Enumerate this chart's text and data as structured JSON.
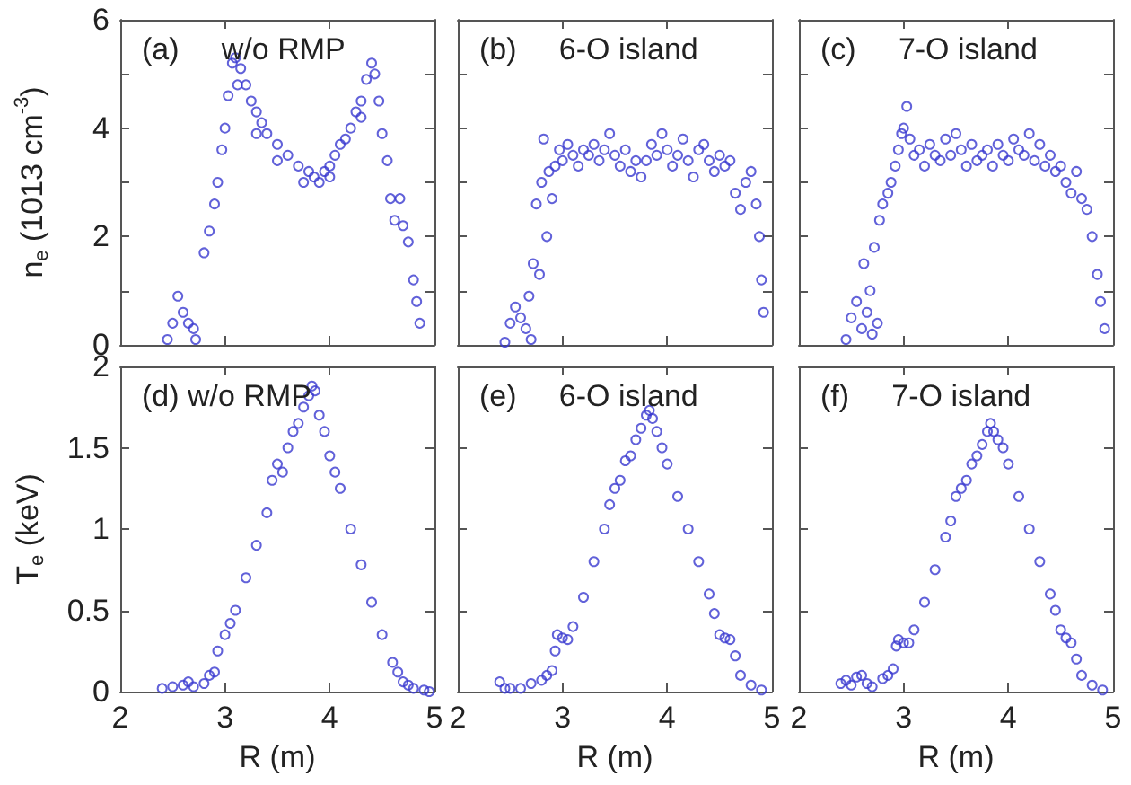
{
  "chart_data": [
    {
      "type": "scatter",
      "title": "(a)     w/o RMP",
      "ylabel": "n$_{e}$ (1013 cm$^{-3}$)",
      "xlim": [
        2,
        5
      ],
      "xticks": [
        {
          "value": 2,
          "label": null
        },
        {
          "value": 3,
          "label": null
        },
        {
          "value": 4,
          "label": null
        },
        {
          "value": 5,
          "label": null
        }
      ],
      "ylim": [
        0,
        6
      ],
      "yticks": [
        0,
        {
          "value": 1,
          "label": null
        },
        2,
        {
          "value": 3,
          "label": null
        },
        4,
        {
          "value": 5,
          "label": null
        },
        6
      ],
      "tick_labels": "y",
      "marker": "circle",
      "series": [
        {
          "color": "#3a3ad0",
          "x": [
            2.45,
            2.5,
            2.55,
            2.6,
            2.65,
            2.7,
            2.72,
            2.8,
            2.85,
            2.9,
            2.93,
            2.97,
            3.0,
            3.03,
            3.07,
            3.1,
            3.15,
            3.2,
            3.25,
            3.3,
            3.35,
            3.4,
            3.5,
            3.6,
            3.7,
            3.8,
            3.85,
            3.9,
            3.95,
            4.0,
            4.05,
            4.1,
            4.15,
            4.2,
            4.25,
            4.3,
            4.35,
            4.4,
            4.43,
            4.47,
            4.5,
            4.55,
            4.58,
            4.62,
            4.67,
            4.7,
            4.75,
            4.8,
            4.83,
            4.86,
            3.12,
            3.3,
            3.5,
            3.75,
            4.0,
            4.3
          ],
          "values": [
            0.1,
            0.4,
            0.9,
            0.6,
            0.4,
            0.3,
            0.1,
            1.7,
            2.1,
            2.6,
            3.0,
            3.6,
            4.0,
            4.6,
            5.2,
            5.3,
            5.1,
            4.8,
            4.5,
            4.3,
            4.1,
            3.9,
            3.7,
            3.5,
            3.3,
            3.2,
            3.1,
            3.0,
            3.2,
            3.3,
            3.5,
            3.7,
            3.8,
            4.0,
            4.3,
            4.5,
            4.9,
            5.2,
            5.0,
            4.5,
            3.9,
            3.4,
            2.7,
            2.3,
            2.7,
            2.2,
            1.9,
            1.2,
            0.8,
            0.4,
            4.8,
            3.9,
            3.4,
            3.0,
            3.1,
            4.2
          ]
        }
      ]
    },
    {
      "type": "scatter",
      "title": "(b)     6-O island",
      "xlim": [
        2,
        5
      ],
      "xticks": [
        {
          "value": 2,
          "label": null
        },
        {
          "value": 3,
          "label": null
        },
        {
          "value": 4,
          "label": null
        },
        {
          "value": 5,
          "label": null
        }
      ],
      "ylim": [
        0,
        6
      ],
      "yticks": [
        {
          "value": 0,
          "label": null
        },
        {
          "value": 1,
          "label": null
        },
        {
          "value": 2,
          "label": null
        },
        {
          "value": 3,
          "label": null
        },
        {
          "value": 4,
          "label": null
        },
        {
          "value": 5,
          "label": null
        },
        {
          "value": 6,
          "label": null
        }
      ],
      "tick_labels": false,
      "marker": "circle",
      "series": [
        {
          "color": "#3a3ad0",
          "x": [
            2.45,
            2.5,
            2.55,
            2.6,
            2.65,
            2.7,
            2.68,
            2.72,
            2.75,
            2.78,
            2.8,
            2.82,
            2.85,
            2.87,
            2.9,
            2.93,
            2.97,
            3.0,
            3.05,
            3.1,
            3.15,
            3.2,
            3.25,
            3.3,
            3.35,
            3.4,
            3.45,
            3.5,
            3.55,
            3.6,
            3.65,
            3.7,
            3.75,
            3.8,
            3.85,
            3.9,
            3.95,
            4.0,
            4.05,
            4.1,
            4.15,
            4.2,
            4.25,
            4.3,
            4.35,
            4.4,
            4.45,
            4.5,
            4.55,
            4.6,
            4.65,
            4.7,
            4.75,
            4.8,
            4.85,
            4.88,
            4.9,
            4.92
          ],
          "values": [
            0.05,
            0.4,
            0.7,
            0.5,
            0.3,
            0.1,
            0.9,
            1.5,
            2.6,
            1.3,
            3.0,
            3.8,
            2.0,
            3.2,
            2.7,
            3.3,
            3.6,
            3.4,
            3.7,
            3.5,
            3.3,
            3.6,
            3.5,
            3.7,
            3.4,
            3.6,
            3.9,
            3.5,
            3.3,
            3.6,
            3.2,
            3.4,
            3.1,
            3.4,
            3.7,
            3.5,
            3.9,
            3.6,
            3.3,
            3.5,
            3.8,
            3.4,
            3.1,
            3.6,
            3.7,
            3.4,
            3.2,
            3.5,
            3.3,
            3.4,
            2.8,
            2.5,
            3.0,
            3.2,
            2.6,
            2.0,
            1.2,
            0.6
          ]
        }
      ]
    },
    {
      "type": "scatter",
      "title": "(c)     7-O island",
      "xlim": [
        2,
        5
      ],
      "xticks": [
        {
          "value": 2,
          "label": null
        },
        {
          "value": 3,
          "label": null
        },
        {
          "value": 4,
          "label": null
        },
        {
          "value": 5,
          "label": null
        }
      ],
      "ylim": [
        0,
        6
      ],
      "yticks": [
        {
          "value": 0,
          "label": null
        },
        {
          "value": 1,
          "label": null
        },
        {
          "value": 2,
          "label": null
        },
        {
          "value": 3,
          "label": null
        },
        {
          "value": 4,
          "label": null
        },
        {
          "value": 5,
          "label": null
        },
        {
          "value": 6,
          "label": null
        }
      ],
      "tick_labels": false,
      "marker": "circle",
      "series": [
        {
          "color": "#3a3ad0",
          "x": [
            2.45,
            2.5,
            2.55,
            2.6,
            2.65,
            2.7,
            2.75,
            2.62,
            2.68,
            2.72,
            2.77,
            2.8,
            2.85,
            2.88,
            2.92,
            2.95,
            2.98,
            3.0,
            3.03,
            3.06,
            3.1,
            3.15,
            3.2,
            3.25,
            3.3,
            3.35,
            3.4,
            3.45,
            3.5,
            3.55,
            3.6,
            3.65,
            3.7,
            3.75,
            3.8,
            3.85,
            3.9,
            3.95,
            4.0,
            4.05,
            4.1,
            4.15,
            4.2,
            4.25,
            4.3,
            4.35,
            4.4,
            4.45,
            4.5,
            4.55,
            4.6,
            4.65,
            4.7,
            4.75,
            4.8,
            4.85,
            4.88,
            4.92
          ],
          "values": [
            0.1,
            0.5,
            0.8,
            0.3,
            0.6,
            0.2,
            0.4,
            1.5,
            1.0,
            1.8,
            2.3,
            2.6,
            2.8,
            3.0,
            3.3,
            3.6,
            3.9,
            4.0,
            4.4,
            3.8,
            3.5,
            3.6,
            3.3,
            3.7,
            3.5,
            3.4,
            3.8,
            3.5,
            3.9,
            3.6,
            3.3,
            3.7,
            3.4,
            3.5,
            3.6,
            3.3,
            3.7,
            3.5,
            3.4,
            3.8,
            3.6,
            3.5,
            3.9,
            3.4,
            3.7,
            3.3,
            3.5,
            3.2,
            3.3,
            3.0,
            2.8,
            3.2,
            2.7,
            2.5,
            2.0,
            1.3,
            0.8,
            0.3
          ]
        }
      ]
    },
    {
      "type": "scatter",
      "title": "(d) w/o RMP",
      "xlabel": "R (m)",
      "ylabel": "T$_{e}$ (keV)",
      "xlim": [
        2,
        5
      ],
      "xticks": [
        2,
        3,
        4,
        5
      ],
      "ylim": [
        0,
        2
      ],
      "yticks": [
        0,
        0.5,
        1,
        1.5,
        2
      ],
      "marker": "circle",
      "series": [
        {
          "color": "#3a3ad0",
          "x": [
            2.4,
            2.5,
            2.6,
            2.65,
            2.7,
            2.8,
            2.85,
            2.9,
            2.93,
            3.0,
            3.05,
            3.1,
            3.2,
            3.3,
            3.4,
            3.45,
            3.5,
            3.55,
            3.6,
            3.65,
            3.7,
            3.75,
            3.8,
            3.83,
            3.86,
            3.9,
            3.95,
            4.0,
            4.05,
            4.1,
            4.2,
            4.3,
            4.4,
            4.5,
            4.6,
            4.65,
            4.7,
            4.75,
            4.8,
            4.9,
            4.95
          ],
          "values": [
            0.02,
            0.03,
            0.04,
            0.06,
            0.03,
            0.05,
            0.1,
            0.12,
            0.25,
            0.35,
            0.42,
            0.5,
            0.7,
            0.9,
            1.1,
            1.3,
            1.4,
            1.35,
            1.5,
            1.6,
            1.65,
            1.75,
            1.82,
            1.88,
            1.85,
            1.7,
            1.6,
            1.45,
            1.35,
            1.25,
            1.0,
            0.78,
            0.55,
            0.35,
            0.18,
            0.12,
            0.06,
            0.04,
            0.02,
            0.01,
            0.0
          ]
        }
      ]
    },
    {
      "type": "scatter",
      "title": "(e)     6-O island",
      "xlabel": "R (m)",
      "xlim": [
        2,
        5
      ],
      "xticks": [
        2,
        3,
        4,
        5
      ],
      "ylim": [
        0,
        2
      ],
      "yticks": [
        {
          "value": 0,
          "label": null
        },
        {
          "value": 0.5,
          "label": null
        },
        {
          "value": 1,
          "label": null
        },
        {
          "value": 1.5,
          "label": null
        },
        {
          "value": 2,
          "label": null
        }
      ],
      "tick_labels": "x",
      "marker": "circle",
      "series": [
        {
          "color": "#3a3ad0",
          "x": [
            2.4,
            2.45,
            2.5,
            2.6,
            2.7,
            2.8,
            2.85,
            2.9,
            2.93,
            2.95,
            3.0,
            3.05,
            3.1,
            3.2,
            3.3,
            3.4,
            3.45,
            3.5,
            3.55,
            3.6,
            3.65,
            3.7,
            3.75,
            3.8,
            3.83,
            3.86,
            3.9,
            3.95,
            4.0,
            4.1,
            4.2,
            4.3,
            4.4,
            4.45,
            4.5,
            4.55,
            4.6,
            4.65,
            4.7,
            4.8,
            4.9
          ],
          "values": [
            0.06,
            0.02,
            0.02,
            0.02,
            0.05,
            0.07,
            0.1,
            0.13,
            0.25,
            0.35,
            0.33,
            0.32,
            0.4,
            0.58,
            0.8,
            1.0,
            1.15,
            1.25,
            1.3,
            1.42,
            1.45,
            1.55,
            1.62,
            1.7,
            1.73,
            1.68,
            1.6,
            1.5,
            1.4,
            1.2,
            1.0,
            0.8,
            0.6,
            0.48,
            0.35,
            0.33,
            0.32,
            0.22,
            0.1,
            0.04,
            0.01
          ]
        }
      ]
    },
    {
      "type": "scatter",
      "title": "(f)     7-O island",
      "xlabel": "R (m)",
      "xlim": [
        2,
        5
      ],
      "xticks": [
        2,
        3,
        4,
        5
      ],
      "ylim": [
        0,
        2
      ],
      "yticks": [
        {
          "value": 0,
          "label": null
        },
        {
          "value": 0.5,
          "label": null
        },
        {
          "value": 1,
          "label": null
        },
        {
          "value": 1.5,
          "label": null
        },
        {
          "value": 2,
          "label": null
        }
      ],
      "tick_labels": "x",
      "marker": "circle",
      "series": [
        {
          "color": "#3a3ad0",
          "x": [
            2.4,
            2.45,
            2.5,
            2.55,
            2.6,
            2.65,
            2.7,
            2.8,
            2.85,
            2.9,
            2.93,
            2.95,
            3.0,
            3.05,
            3.1,
            3.2,
            3.3,
            3.4,
            3.45,
            3.5,
            3.55,
            3.6,
            3.65,
            3.7,
            3.75,
            3.8,
            3.83,
            3.86,
            3.9,
            3.95,
            4.0,
            4.1,
            4.2,
            4.3,
            4.4,
            4.45,
            4.5,
            4.55,
            4.6,
            4.65,
            4.7,
            4.8,
            4.9
          ],
          "values": [
            0.05,
            0.07,
            0.04,
            0.09,
            0.1,
            0.05,
            0.03,
            0.08,
            0.1,
            0.14,
            0.28,
            0.32,
            0.3,
            0.3,
            0.38,
            0.55,
            0.75,
            0.95,
            1.05,
            1.2,
            1.25,
            1.3,
            1.4,
            1.45,
            1.52,
            1.6,
            1.65,
            1.6,
            1.55,
            1.5,
            1.4,
            1.2,
            1.0,
            0.8,
            0.6,
            0.5,
            0.38,
            0.33,
            0.3,
            0.2,
            0.1,
            0.04,
            0.01
          ]
        }
      ]
    }
  ]
}
